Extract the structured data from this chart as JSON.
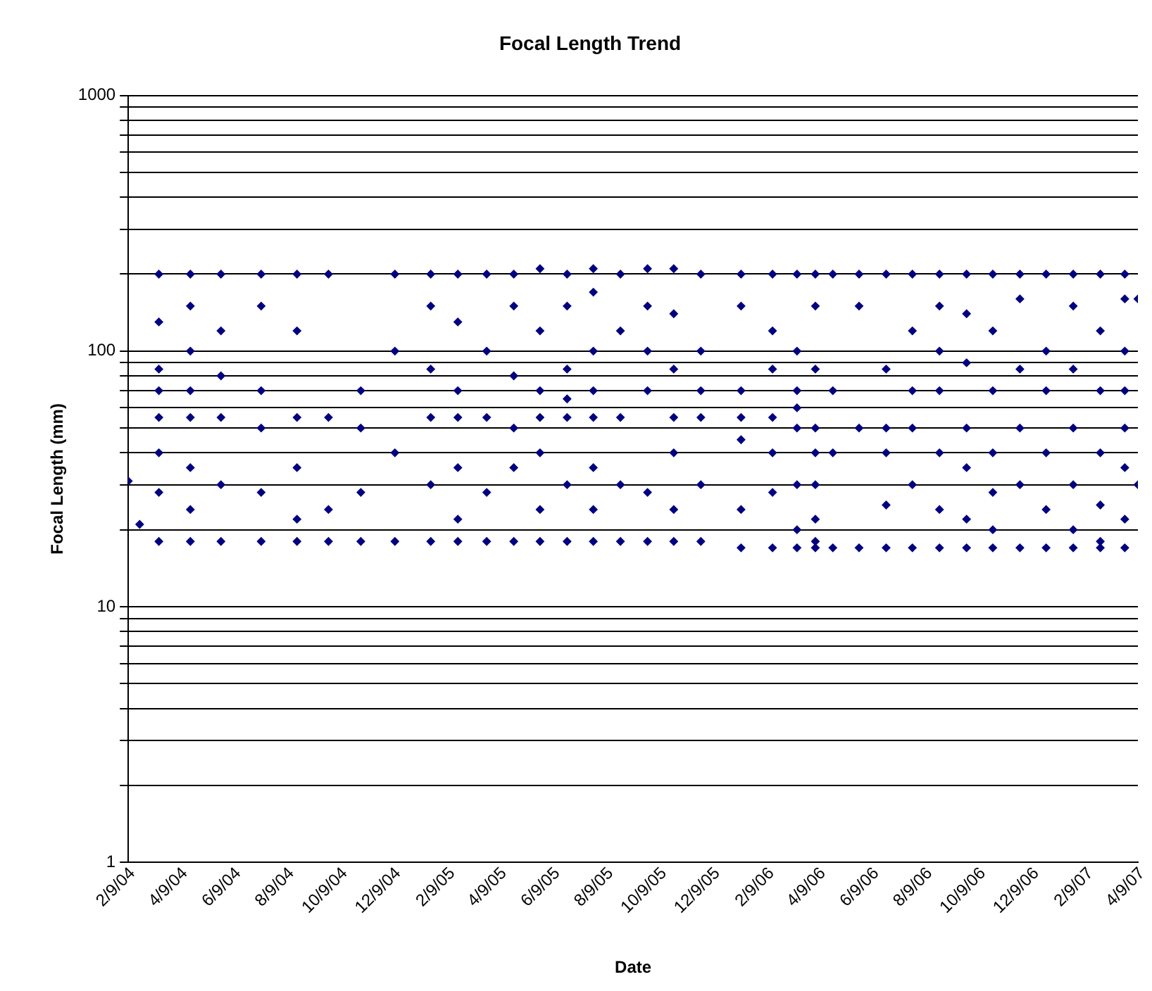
{
  "chart_data": {
    "type": "scatter",
    "title": "Focal Length Trend",
    "xlabel": "Date",
    "ylabel": "Focal Length (mm)",
    "log": "y",
    "grid": "y",
    "marker": "diamond",
    "legend": false,
    "xlim": [
      "2004-02-09",
      "2007-04-09"
    ],
    "xticks": [
      {
        "value": "2004-02-09",
        "label": "2/9/04"
      },
      {
        "value": "2004-04-09",
        "label": "4/9/04"
      },
      {
        "value": "2004-06-09",
        "label": "6/9/04"
      },
      {
        "value": "2004-08-09",
        "label": "8/9/04"
      },
      {
        "value": "2004-10-09",
        "label": "10/9/04"
      },
      {
        "value": "2004-12-09",
        "label": "12/9/04"
      },
      {
        "value": "2005-02-09",
        "label": "2/9/05"
      },
      {
        "value": "2005-04-09",
        "label": "4/9/05"
      },
      {
        "value": "2005-06-09",
        "label": "6/9/05"
      },
      {
        "value": "2005-08-09",
        "label": "8/9/05"
      },
      {
        "value": "2005-10-09",
        "label": "10/9/05"
      },
      {
        "value": "2005-12-09",
        "label": "12/9/05"
      },
      {
        "value": "2006-02-09",
        "label": "2/9/06"
      },
      {
        "value": "2006-04-09",
        "label": "4/9/06"
      },
      {
        "value": "2006-06-09",
        "label": "6/9/06"
      },
      {
        "value": "2006-08-09",
        "label": "8/9/06"
      },
      {
        "value": "2006-10-09",
        "label": "10/9/06"
      },
      {
        "value": "2006-12-09",
        "label": "12/9/06"
      },
      {
        "value": "2007-02-09",
        "label": "2/9/07"
      },
      {
        "value": "2007-04-09",
        "label": "4/9/07"
      }
    ],
    "ylim": [
      1,
      1000
    ],
    "yticks": [
      1,
      {
        "value": 2,
        "label": null
      },
      {
        "value": 3,
        "label": null
      },
      {
        "value": 4,
        "label": null
      },
      {
        "value": 5,
        "label": null
      },
      {
        "value": 6,
        "label": null
      },
      {
        "value": 7,
        "label": null
      },
      {
        "value": 8,
        "label": null
      },
      {
        "value": 9,
        "label": null
      },
      10,
      {
        "value": 20,
        "label": null
      },
      {
        "value": 30,
        "label": null
      },
      {
        "value": 40,
        "label": null
      },
      {
        "value": 50,
        "label": null
      },
      {
        "value": 60,
        "label": null
      },
      {
        "value": 70,
        "label": null
      },
      {
        "value": 80,
        "label": null
      },
      {
        "value": 90,
        "label": null
      },
      100,
      {
        "value": 200,
        "label": null
      },
      {
        "value": 300,
        "label": null
      },
      {
        "value": 400,
        "label": null
      },
      {
        "value": 500,
        "label": null
      },
      {
        "value": 600,
        "label": null
      },
      {
        "value": 700,
        "label": null
      },
      {
        "value": 800,
        "label": null
      },
      {
        "value": 900,
        "label": null
      },
      1000
    ],
    "series": [
      {
        "color": "#000080",
        "x": [
          "2004-02-09",
          "2004-02-22",
          "2004-03-15",
          "2004-03-15",
          "2004-03-15",
          "2004-03-15",
          "2004-03-15",
          "2004-03-15",
          "2004-03-15",
          "2004-03-15",
          "2004-04-20",
          "2004-04-20",
          "2004-04-20",
          "2004-04-20",
          "2004-04-20",
          "2004-04-20",
          "2004-04-20",
          "2004-04-20",
          "2004-05-25",
          "2004-05-25",
          "2004-05-25",
          "2004-05-25",
          "2004-05-25",
          "2004-05-25",
          "2004-07-10",
          "2004-07-10",
          "2004-07-10",
          "2004-07-10",
          "2004-07-10",
          "2004-07-10",
          "2004-08-20",
          "2004-08-20",
          "2004-08-20",
          "2004-08-20",
          "2004-08-20",
          "2004-08-20",
          "2004-09-25",
          "2004-09-25",
          "2004-09-25",
          "2004-09-25",
          "2004-11-01",
          "2004-11-01",
          "2004-11-01",
          "2004-11-01",
          "2004-12-10",
          "2004-12-10",
          "2004-12-10",
          "2004-12-10",
          "2005-01-20",
          "2005-01-20",
          "2005-01-20",
          "2005-01-20",
          "2005-01-20",
          "2005-01-20",
          "2005-02-20",
          "2005-02-20",
          "2005-02-20",
          "2005-02-20",
          "2005-02-20",
          "2005-02-20",
          "2005-02-20",
          "2005-03-25",
          "2005-03-25",
          "2005-03-25",
          "2005-03-25",
          "2005-03-25",
          "2005-04-25",
          "2005-04-25",
          "2005-04-25",
          "2005-04-25",
          "2005-04-25",
          "2005-04-25",
          "2005-05-25",
          "2005-05-25",
          "2005-05-25",
          "2005-05-25",
          "2005-05-25",
          "2005-05-25",
          "2005-05-25",
          "2005-06-25",
          "2005-06-25",
          "2005-06-25",
          "2005-06-25",
          "2005-06-25",
          "2005-06-25",
          "2005-06-25",
          "2005-07-25",
          "2005-07-25",
          "2005-07-25",
          "2005-07-25",
          "2005-07-25",
          "2005-07-25",
          "2005-07-25",
          "2005-07-25",
          "2005-08-25",
          "2005-08-25",
          "2005-08-25",
          "2005-08-25",
          "2005-08-25",
          "2005-09-25",
          "2005-09-25",
          "2005-09-25",
          "2005-09-25",
          "2005-09-25",
          "2005-09-25",
          "2005-10-25",
          "2005-10-25",
          "2005-10-25",
          "2005-10-25",
          "2005-10-25",
          "2005-10-25",
          "2005-10-25",
          "2005-11-25",
          "2005-11-25",
          "2005-11-25",
          "2005-11-25",
          "2005-11-25",
          "2005-11-25",
          "2006-01-10",
          "2006-01-10",
          "2006-01-10",
          "2006-01-10",
          "2006-01-10",
          "2006-01-10",
          "2006-01-10",
          "2006-02-15",
          "2006-02-15",
          "2006-02-15",
          "2006-02-15",
          "2006-02-15",
          "2006-02-15",
          "2006-02-15",
          "2006-03-15",
          "2006-03-15",
          "2006-03-15",
          "2006-03-15",
          "2006-03-15",
          "2006-03-15",
          "2006-03-15",
          "2006-03-15",
          "2006-04-05",
          "2006-04-05",
          "2006-04-05",
          "2006-04-05",
          "2006-04-05",
          "2006-04-05",
          "2006-04-05",
          "2006-04-05",
          "2006-04-05",
          "2006-04-25",
          "2006-04-25",
          "2006-04-25",
          "2006-04-25",
          "2006-05-25",
          "2006-05-25",
          "2006-05-25",
          "2006-05-25",
          "2006-06-25",
          "2006-06-25",
          "2006-06-25",
          "2006-06-25",
          "2006-06-25",
          "2006-06-25",
          "2006-07-25",
          "2006-07-25",
          "2006-07-25",
          "2006-07-25",
          "2006-07-25",
          "2006-07-25",
          "2006-08-25",
          "2006-08-25",
          "2006-08-25",
          "2006-08-25",
          "2006-08-25",
          "2006-08-25",
          "2006-08-25",
          "2006-09-25",
          "2006-09-25",
          "2006-09-25",
          "2006-09-25",
          "2006-09-25",
          "2006-09-25",
          "2006-09-25",
          "2006-10-25",
          "2006-10-25",
          "2006-10-25",
          "2006-10-25",
          "2006-10-25",
          "2006-10-25",
          "2006-10-25",
          "2006-11-25",
          "2006-11-25",
          "2006-11-25",
          "2006-11-25",
          "2006-11-25",
          "2006-11-25",
          "2006-12-25",
          "2006-12-25",
          "2006-12-25",
          "2006-12-25",
          "2006-12-25",
          "2006-12-25",
          "2007-01-25",
          "2007-01-25",
          "2007-01-25",
          "2007-01-25",
          "2007-01-25",
          "2007-01-25",
          "2007-01-25",
          "2007-02-25",
          "2007-02-25",
          "2007-02-25",
          "2007-02-25",
          "2007-02-25",
          "2007-02-25",
          "2007-02-25",
          "2007-03-25",
          "2007-03-25",
          "2007-03-25",
          "2007-03-25",
          "2007-03-25",
          "2007-03-25",
          "2007-03-25",
          "2007-03-25",
          "2007-04-09",
          "2007-04-09"
        ],
        "values": [
          31,
          21,
          200,
          130,
          85,
          70,
          55,
          40,
          28,
          18,
          200,
          150,
          100,
          70,
          55,
          35,
          24,
          18,
          200,
          120,
          80,
          55,
          30,
          18,
          200,
          150,
          70,
          50,
          28,
          18,
          200,
          120,
          55,
          35,
          22,
          18,
          200,
          55,
          24,
          18,
          70,
          50,
          28,
          18,
          200,
          100,
          40,
          18,
          200,
          150,
          85,
          55,
          30,
          18,
          200,
          130,
          70,
          55,
          35,
          22,
          18,
          200,
          100,
          55,
          28,
          18,
          200,
          150,
          80,
          50,
          35,
          18,
          210,
          120,
          70,
          55,
          40,
          24,
          18,
          200,
          150,
          85,
          65,
          55,
          30,
          18,
          210,
          170,
          100,
          70,
          55,
          35,
          24,
          18,
          200,
          120,
          55,
          30,
          18,
          210,
          150,
          100,
          70,
          28,
          18,
          210,
          140,
          85,
          55,
          40,
          24,
          18,
          200,
          100,
          70,
          55,
          30,
          18,
          200,
          150,
          70,
          55,
          45,
          24,
          17,
          200,
          120,
          85,
          55,
          40,
          28,
          17,
          200,
          100,
          70,
          60,
          50,
          30,
          20,
          17,
          200,
          150,
          85,
          50,
          40,
          30,
          22,
          18,
          17,
          200,
          70,
          40,
          17,
          200,
          150,
          50,
          17,
          200,
          85,
          50,
          40,
          25,
          17,
          200,
          120,
          70,
          50,
          30,
          17,
          200,
          150,
          100,
          70,
          40,
          24,
          17,
          200,
          140,
          90,
          50,
          35,
          22,
          17,
          200,
          120,
          70,
          40,
          28,
          20,
          17,
          200,
          160,
          85,
          50,
          30,
          17,
          200,
          100,
          70,
          40,
          24,
          17,
          200,
          150,
          85,
          50,
          30,
          20,
          17,
          200,
          120,
          70,
          40,
          25,
          18,
          17,
          200,
          160,
          100,
          70,
          50,
          35,
          22,
          17,
          160,
          30
        ]
      }
    ]
  }
}
